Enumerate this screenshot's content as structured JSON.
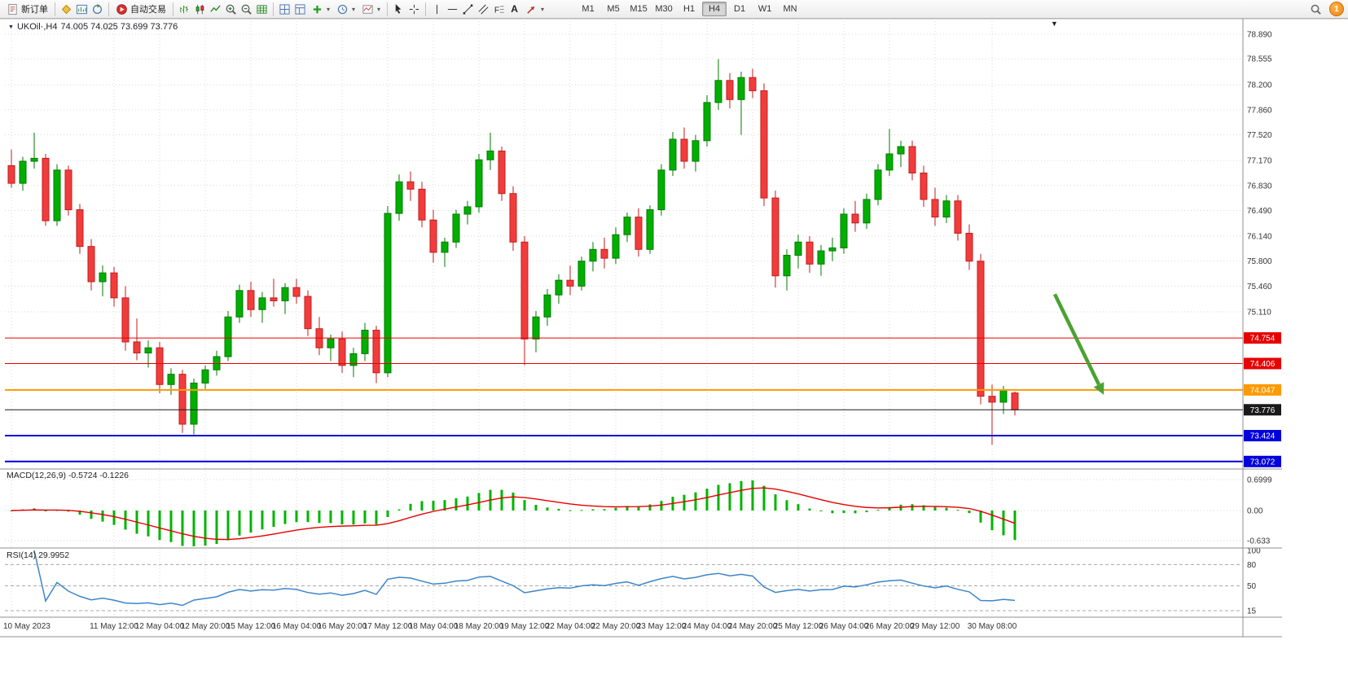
{
  "toolbar": {
    "new_order_label": "新订单",
    "autotrade_label": "自动交易",
    "text_tool_label": "A",
    "timeframes": [
      "M1",
      "M5",
      "M15",
      "M30",
      "H1",
      "H4",
      "D1",
      "W1",
      "MN"
    ],
    "active_timeframe": "H4",
    "notification_count": "1"
  },
  "chart": {
    "symbol_period": "UKOil·,H4",
    "ohlc_text": "74.005 74.025 73.699 73.776"
  },
  "price_scale": {
    "ticks": [
      "78.890",
      "78.555",
      "78.200",
      "77.860",
      "77.520",
      "77.170",
      "76.830",
      "76.490",
      "76.140",
      "75.800",
      "75.460",
      "75.110"
    ]
  },
  "hlines": [
    {
      "price": 74.754,
      "label": "74.754",
      "color": "#e60000",
      "width": 1,
      "role": "resistance"
    },
    {
      "price": 74.406,
      "label": "74.406",
      "color": "#e60000",
      "width": 1,
      "role": "resistance"
    },
    {
      "price": 74.047,
      "label": "74.047",
      "color": "#ff9a00",
      "width": 2,
      "role": "support"
    },
    {
      "price": 73.776,
      "label": "73.776",
      "color": "#1a1a1a",
      "width": 1,
      "role": "current-price"
    },
    {
      "price": 73.424,
      "label": "73.424",
      "color": "#0000dc",
      "width": 2,
      "role": "support"
    },
    {
      "price": 73.072,
      "label": "73.072",
      "color": "#0000dc",
      "width": 2,
      "role": "support"
    }
  ],
  "macd_panel": {
    "label": "MACD(12,26,9) -0.5724 -0.1226",
    "params": [
      12,
      26,
      9
    ],
    "scale": [
      "0.6999",
      "0.00",
      "-0.633"
    ]
  },
  "rsi_panel": {
    "label": "RSI(14) 29.9952",
    "period": 14,
    "scale": [
      "100",
      "80",
      "50",
      "15"
    ],
    "levels": [
      80,
      50,
      15
    ]
  },
  "time_axis": {
    "labels": [
      {
        "i": 0,
        "t": "10 May 2023"
      },
      {
        "i": 9,
        "t": "11 May 12:00"
      },
      {
        "i": 13,
        "t": "12 May 04:00"
      },
      {
        "i": 17,
        "t": "12 May 20:00"
      },
      {
        "i": 21,
        "t": "15 May 12:00"
      },
      {
        "i": 25,
        "t": "16 May 04:00"
      },
      {
        "i": 29,
        "t": "16 May 20:00"
      },
      {
        "i": 33,
        "t": "17 May 12:00"
      },
      {
        "i": 37,
        "t": "18 May 04:00"
      },
      {
        "i": 41,
        "t": "18 May 20:00"
      },
      {
        "i": 45,
        "t": "19 May 12:00"
      },
      {
        "i": 49,
        "t": "22 May 04:00"
      },
      {
        "i": 53,
        "t": "22 May 20:00"
      },
      {
        "i": 57,
        "t": "23 May 12:00"
      },
      {
        "i": 61,
        "t": "24 May 04:00"
      },
      {
        "i": 65,
        "t": "24 May 20:00"
      },
      {
        "i": 69,
        "t": "25 May 12:00"
      },
      {
        "i": 73,
        "t": "26 May 04:00"
      },
      {
        "i": 77,
        "t": "26 May 20:00"
      },
      {
        "i": 81,
        "t": "29 May 12:00"
      },
      {
        "i": 86,
        "t": "30 May 08:00"
      }
    ]
  },
  "annotations": [
    {
      "type": "arrow",
      "from_i": 91.5,
      "from_price": 75.35,
      "to_i": 95.8,
      "to_price": 73.98,
      "color": "#4aa233"
    }
  ],
  "colors": {
    "bull": "#00af00",
    "bull_stroke": "#007a00",
    "bear": "#f23c3c",
    "bear_stroke": "#c01e1e",
    "grid": "#d9d9d9",
    "macd_hist": "#00b400",
    "macd_signal": "#e60000",
    "rsi": "#3d85c8"
  },
  "chart_data": {
    "type": "candlestick",
    "symbol": "UKOil",
    "timeframe": "H4",
    "ohlc_current": {
      "open": 74.005,
      "high": 74.025,
      "low": 73.699,
      "close": 73.776
    },
    "ylim": [
      73.0,
      79.1
    ],
    "candles": [
      [
        77.1,
        77.32,
        76.8,
        76.86
      ],
      [
        76.86,
        77.22,
        76.76,
        77.16
      ],
      [
        77.16,
        77.55,
        77.06,
        77.2
      ],
      [
        77.2,
        77.26,
        76.28,
        76.35
      ],
      [
        76.35,
        77.12,
        76.28,
        77.04
      ],
      [
        77.04,
        77.1,
        76.42,
        76.5
      ],
      [
        76.5,
        76.58,
        75.9,
        76.0
      ],
      [
        76.0,
        76.1,
        75.4,
        75.52
      ],
      [
        75.52,
        75.74,
        75.32,
        75.64
      ],
      [
        75.64,
        75.72,
        75.18,
        75.3
      ],
      [
        75.3,
        75.46,
        74.58,
        74.7
      ],
      [
        74.7,
        75.02,
        74.45,
        74.55
      ],
      [
        74.55,
        74.72,
        74.35,
        74.62
      ],
      [
        74.62,
        74.7,
        74.0,
        74.12
      ],
      [
        74.12,
        74.34,
        73.98,
        74.26
      ],
      [
        74.26,
        74.32,
        73.46,
        73.58
      ],
      [
        73.58,
        74.2,
        73.44,
        74.14
      ],
      [
        74.14,
        74.38,
        74.06,
        74.32
      ],
      [
        74.32,
        74.58,
        74.24,
        74.5
      ],
      [
        74.5,
        75.12,
        74.44,
        75.04
      ],
      [
        75.04,
        75.48,
        74.96,
        75.4
      ],
      [
        75.4,
        75.52,
        75.04,
        75.14
      ],
      [
        75.14,
        75.38,
        74.96,
        75.3
      ],
      [
        75.3,
        75.56,
        75.18,
        75.26
      ],
      [
        75.26,
        75.5,
        75.08,
        75.44
      ],
      [
        75.44,
        75.56,
        75.22,
        75.32
      ],
      [
        75.32,
        75.4,
        74.78,
        74.88
      ],
      [
        74.88,
        75.04,
        74.52,
        74.62
      ],
      [
        74.62,
        74.8,
        74.44,
        74.74
      ],
      [
        74.74,
        74.84,
        74.28,
        74.38
      ],
      [
        74.38,
        74.62,
        74.22,
        74.54
      ],
      [
        74.54,
        74.96,
        74.44,
        74.86
      ],
      [
        74.86,
        74.92,
        74.14,
        74.28
      ],
      [
        74.28,
        76.55,
        74.22,
        76.45
      ],
      [
        76.45,
        76.98,
        76.35,
        76.88
      ],
      [
        76.88,
        77.02,
        76.62,
        76.78
      ],
      [
        76.78,
        76.88,
        76.26,
        76.36
      ],
      [
        76.36,
        76.5,
        75.78,
        75.92
      ],
      [
        75.92,
        76.12,
        75.72,
        76.06
      ],
      [
        76.06,
        76.5,
        75.98,
        76.44
      ],
      [
        76.44,
        76.62,
        76.3,
        76.54
      ],
      [
        76.54,
        77.26,
        76.46,
        77.18
      ],
      [
        77.18,
        77.55,
        77.04,
        77.3
      ],
      [
        77.3,
        77.36,
        76.62,
        76.72
      ],
      [
        76.72,
        76.82,
        75.94,
        76.06
      ],
      [
        76.06,
        76.14,
        74.38,
        74.74
      ],
      [
        74.74,
        75.12,
        74.56,
        75.04
      ],
      [
        75.04,
        75.42,
        74.92,
        75.34
      ],
      [
        75.34,
        75.62,
        75.22,
        75.54
      ],
      [
        75.54,
        75.74,
        75.34,
        75.46
      ],
      [
        75.46,
        75.86,
        75.4,
        75.8
      ],
      [
        75.8,
        76.06,
        75.66,
        75.96
      ],
      [
        75.96,
        76.12,
        75.7,
        75.84
      ],
      [
        75.84,
        76.26,
        75.76,
        76.16
      ],
      [
        76.16,
        76.46,
        76.06,
        76.4
      ],
      [
        76.4,
        76.52,
        75.86,
        75.96
      ],
      [
        75.96,
        76.56,
        75.9,
        76.5
      ],
      [
        76.5,
        77.12,
        76.42,
        77.04
      ],
      [
        77.04,
        77.56,
        76.96,
        77.46
      ],
      [
        77.46,
        77.62,
        77.06,
        77.16
      ],
      [
        77.16,
        77.52,
        77.02,
        77.44
      ],
      [
        77.44,
        78.06,
        77.36,
        77.96
      ],
      [
        77.96,
        78.55,
        77.86,
        78.26
      ],
      [
        78.26,
        78.36,
        77.88,
        78.0
      ],
      [
        78.0,
        78.38,
        77.52,
        78.3
      ],
      [
        78.3,
        78.42,
        78.02,
        78.12
      ],
      [
        78.12,
        78.22,
        76.55,
        76.66
      ],
      [
        76.66,
        76.76,
        75.44,
        75.6
      ],
      [
        75.6,
        75.96,
        75.4,
        75.88
      ],
      [
        75.88,
        76.16,
        75.7,
        76.06
      ],
      [
        76.06,
        76.14,
        75.64,
        75.76
      ],
      [
        75.76,
        76.02,
        75.6,
        75.94
      ],
      [
        75.94,
        76.12,
        75.8,
        75.98
      ],
      [
        75.98,
        76.52,
        75.9,
        76.44
      ],
      [
        76.44,
        76.62,
        76.2,
        76.32
      ],
      [
        76.32,
        76.72,
        76.24,
        76.64
      ],
      [
        76.64,
        77.12,
        76.56,
        77.04
      ],
      [
        77.04,
        77.6,
        76.96,
        77.26
      ],
      [
        77.26,
        77.44,
        77.08,
        77.36
      ],
      [
        77.36,
        77.44,
        76.9,
        77.0
      ],
      [
        77.0,
        77.1,
        76.54,
        76.64
      ],
      [
        76.64,
        76.8,
        76.28,
        76.4
      ],
      [
        76.4,
        76.7,
        76.32,
        76.62
      ],
      [
        76.62,
        76.7,
        76.08,
        76.18
      ],
      [
        76.18,
        76.3,
        75.68,
        75.8
      ],
      [
        75.8,
        75.9,
        73.85,
        73.96
      ],
      [
        73.96,
        74.12,
        73.3,
        73.88
      ],
      [
        73.88,
        74.1,
        73.72,
        74.04
      ],
      [
        74.005,
        74.025,
        73.699,
        73.776
      ]
    ]
  }
}
